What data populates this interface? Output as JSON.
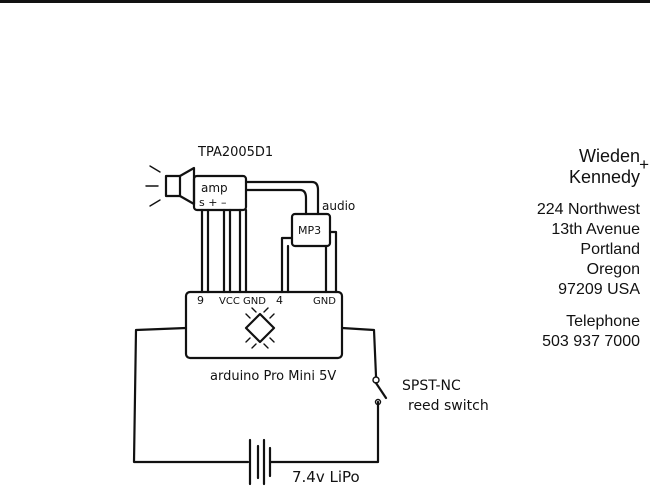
{
  "schematic": {
    "amp_chip": "TPA2005D1",
    "amp_label": "amp",
    "amp_pins": "s + –",
    "mp3_label": "MP3",
    "audio_label": "audio",
    "pin_9": "9",
    "pin_vcc": "VCC",
    "pin_gnd_left": "GND",
    "pin_4": "4",
    "pin_gnd_right": "GND",
    "board_label": "arduino Pro Mini 5V",
    "switch_line1": "SPST-NC",
    "switch_line2": "reed switch",
    "battery_label": "7.4v LiPo"
  },
  "company": {
    "logo_line1": "Wieden",
    "logo_line2": "Kennedy",
    "logo_plus": "+",
    "address_1": "224 Northwest",
    "address_2": "13th Avenue",
    "address_3": "Portland",
    "address_4": "Oregon",
    "address_5": "97209 USA",
    "phone_label": "Telephone",
    "phone_number": "503 937 7000"
  }
}
